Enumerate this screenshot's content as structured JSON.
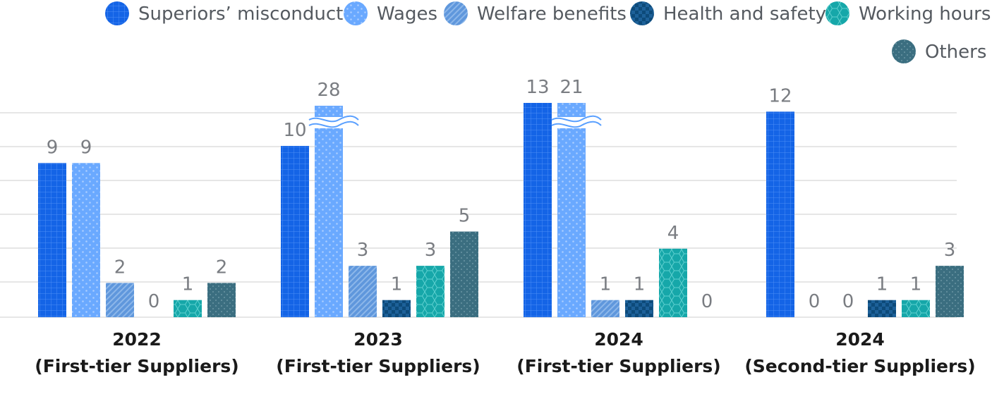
{
  "chart_data": {
    "type": "bar",
    "categories": [
      [
        "2022",
        "(First-tier Suppliers)"
      ],
      [
        "2023",
        "(First-tier Suppliers)"
      ],
      [
        "2024",
        "(First-tier Suppliers)"
      ],
      [
        "2024",
        "(Second-tier Suppliers)"
      ]
    ],
    "series": [
      {
        "name": "Superiors’ misconduct",
        "values": [
          9,
          10,
          13,
          12
        ],
        "color": "#1464e6",
        "pattern": "grid"
      },
      {
        "name": "Wages",
        "values": [
          9,
          28,
          21,
          0
        ],
        "color": "#6aa9ff",
        "pattern": "dots"
      },
      {
        "name": "Welfare benefits",
        "values": [
          2,
          3,
          1,
          0
        ],
        "color": "#5f97dc",
        "pattern": "diag"
      },
      {
        "name": "Health and safety",
        "values": [
          0,
          1,
          1,
          1
        ],
        "color": "#0d4a7a",
        "pattern": "check"
      },
      {
        "name": "Working hours",
        "values": [
          1,
          3,
          4,
          1
        ],
        "color": "#16a7a9",
        "pattern": "hex"
      },
      {
        "name": "Others",
        "values": [
          2,
          5,
          0,
          3
        ],
        "color": "#3b6e80",
        "pattern": "dots"
      }
    ],
    "axis_break": {
      "threshold": 12,
      "note": "Bars above the break are truncated with a wavy break mark"
    },
    "ylim": [
      0,
      12
    ],
    "grid": true,
    "legend_position": "top-right"
  }
}
